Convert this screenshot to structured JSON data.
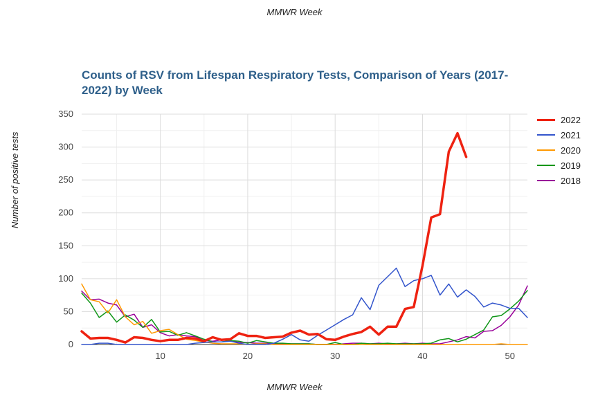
{
  "header": {
    "top_label": "MMWR Week"
  },
  "chart_data": {
    "type": "line",
    "title": "Counts of RSV from Lifespan Respiratory Tests, Comparison of Years (2017-2022) by Week",
    "xlabel": "MMWR Week",
    "ylabel": "Number of positive tests",
    "xlim": [
      1,
      52
    ],
    "ylim": [
      0,
      350
    ],
    "xticks": [
      10,
      20,
      30,
      40,
      50
    ],
    "yticks": [
      0,
      50,
      100,
      150,
      200,
      250,
      300,
      350
    ],
    "grid": true,
    "legend": "right",
    "series": [
      {
        "name": "2022",
        "color": "#ee2211",
        "width": 3.5,
        "x": [
          1,
          2,
          3,
          4,
          5,
          6,
          7,
          8,
          9,
          10,
          11,
          12,
          13,
          14,
          15,
          16,
          17,
          18,
          19,
          20,
          21,
          22,
          23,
          24,
          25,
          26,
          27,
          28,
          29,
          30,
          31,
          32,
          33,
          34,
          35,
          36,
          37,
          38,
          39,
          40,
          41,
          42,
          43,
          44,
          45
        ],
        "y": [
          20,
          9,
          10,
          10,
          7,
          3,
          11,
          10,
          7,
          5,
          7,
          7,
          10,
          9,
          5,
          11,
          7,
          8,
          17,
          13,
          13,
          10,
          11,
          12,
          18,
          21,
          15,
          16,
          8,
          7,
          12,
          16,
          19,
          27,
          15,
          27,
          27,
          54,
          57,
          120,
          193,
          198,
          293,
          321,
          285
        ]
      },
      {
        "name": "2021",
        "color": "#3355cc",
        "width": 1.5,
        "x": [
          1,
          2,
          3,
          4,
          5,
          6,
          7,
          8,
          9,
          10,
          11,
          12,
          13,
          14,
          15,
          16,
          17,
          18,
          19,
          20,
          21,
          22,
          23,
          24,
          25,
          26,
          27,
          28,
          29,
          30,
          31,
          32,
          33,
          34,
          35,
          36,
          37,
          38,
          39,
          40,
          41,
          42,
          43,
          44,
          45,
          46,
          47,
          48,
          49,
          50,
          51,
          52
        ],
        "y": [
          0,
          0,
          2,
          2,
          0,
          0,
          0,
          0,
          0,
          0,
          0,
          0,
          0,
          2,
          3,
          4,
          4,
          5,
          2,
          0,
          0,
          0,
          2,
          8,
          15,
          7,
          5,
          14,
          22,
          30,
          38,
          45,
          71,
          53,
          90,
          103,
          116,
          88,
          97,
          100,
          105,
          75,
          92,
          72,
          83,
          73,
          57,
          63,
          60,
          55,
          55,
          41
        ]
      },
      {
        "name": "2020",
        "color": "#ff9900",
        "width": 1.5,
        "x": [
          1,
          2,
          3,
          4,
          5,
          6,
          7,
          8,
          9,
          10,
          11,
          12,
          13,
          14,
          15,
          16,
          17,
          18,
          19,
          20,
          21,
          22,
          23,
          24,
          25,
          26,
          27,
          28,
          29,
          30,
          31,
          32,
          33,
          34,
          35,
          36,
          37,
          38,
          39,
          40,
          41,
          42,
          43,
          44,
          45,
          46,
          47,
          48,
          49,
          50,
          51,
          52
        ],
        "y": [
          92,
          68,
          65,
          48,
          68,
          42,
          30,
          35,
          17,
          21,
          23,
          15,
          8,
          6,
          4,
          2,
          1,
          1,
          1,
          0,
          1,
          1,
          0,
          0,
          0,
          0,
          0,
          0,
          0,
          0,
          0,
          0,
          0,
          0,
          0,
          0,
          0,
          0,
          0,
          0,
          0,
          0,
          0,
          0,
          0,
          0,
          0,
          0,
          1,
          0,
          0,
          0
        ]
      },
      {
        "name": "2019",
        "color": "#109618",
        "width": 1.5,
        "x": [
          1,
          2,
          3,
          4,
          5,
          6,
          7,
          8,
          9,
          10,
          11,
          12,
          13,
          14,
          15,
          16,
          17,
          18,
          19,
          20,
          21,
          22,
          23,
          24,
          25,
          26,
          27,
          28,
          29,
          30,
          31,
          32,
          33,
          34,
          35,
          36,
          37,
          38,
          39,
          40,
          41,
          42,
          43,
          44,
          45,
          46,
          47,
          48,
          49,
          50,
          51,
          52
        ],
        "y": [
          78,
          63,
          41,
          51,
          34,
          45,
          37,
          26,
          38,
          19,
          20,
          14,
          18,
          13,
          8,
          4,
          4,
          6,
          5,
          2,
          6,
          4,
          2,
          2,
          1,
          1,
          1,
          0,
          0,
          3,
          0,
          0,
          2,
          1,
          1,
          2,
          1,
          1,
          1,
          1,
          2,
          7,
          9,
          4,
          8,
          15,
          22,
          42,
          44,
          54,
          66,
          82
        ]
      },
      {
        "name": "2018",
        "color": "#990099",
        "width": 1.5,
        "x": [
          1,
          2,
          3,
          4,
          5,
          6,
          7,
          8,
          9,
          10,
          11,
          12,
          13,
          14,
          15,
          16,
          17,
          18,
          19,
          20,
          21,
          22,
          23,
          24,
          25,
          26,
          27,
          28,
          29,
          30,
          31,
          32,
          33,
          34,
          35,
          36,
          37,
          38,
          39,
          40,
          41,
          42,
          43,
          44,
          45,
          46,
          47,
          48,
          49,
          50,
          51,
          52
        ],
        "y": [
          81,
          68,
          69,
          63,
          60,
          42,
          46,
          26,
          30,
          18,
          13,
          15,
          13,
          12,
          6,
          5,
          7,
          6,
          3,
          3,
          2,
          2,
          1,
          1,
          1,
          1,
          1,
          0,
          0,
          0,
          1,
          2,
          2,
          1,
          2,
          1,
          1,
          2,
          1,
          2,
          1,
          1,
          4,
          7,
          12,
          10,
          20,
          21,
          29,
          42,
          60,
          89
        ]
      }
    ]
  }
}
